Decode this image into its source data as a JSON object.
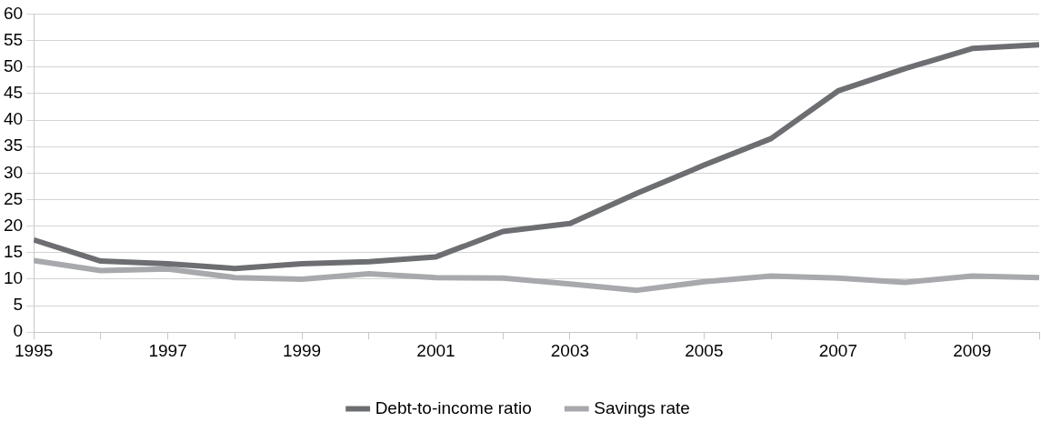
{
  "chart_data": {
    "type": "line",
    "x": [
      1995,
      1996,
      1997,
      1998,
      1999,
      2000,
      2001,
      2002,
      2003,
      2004,
      2005,
      2006,
      2007,
      2008,
      2009,
      2010
    ],
    "series": [
      {
        "name": "Debt-to-income ratio",
        "color": "#6d6e71",
        "values": [
          17.4,
          13.4,
          12.9,
          12.0,
          12.9,
          13.3,
          14.2,
          19.0,
          20.5,
          26.2,
          31.5,
          36.5,
          45.5,
          49.7,
          53.5,
          54.2
        ]
      },
      {
        "name": "Savings rate",
        "color": "#a7a9ac",
        "values": [
          13.5,
          11.6,
          11.9,
          10.3,
          10.0,
          11.0,
          10.3,
          10.2,
          9.1,
          7.9,
          9.5,
          10.6,
          10.2,
          9.4,
          10.6,
          10.3
        ]
      }
    ],
    "xlim": [
      1995,
      2010
    ],
    "xticks": [
      1995,
      {
        "value": 1996,
        "label": null
      },
      1997,
      {
        "value": 1998,
        "label": null
      },
      1999,
      {
        "value": 2000,
        "label": null
      },
      2001,
      {
        "value": 2002,
        "label": null
      },
      2003,
      {
        "value": 2004,
        "label": null
      },
      2005,
      {
        "value": 2006,
        "label": null
      },
      2007,
      {
        "value": 2008,
        "label": null
      },
      2009,
      {
        "value": 2010,
        "label": null
      }
    ],
    "ylim": [
      0,
      60
    ],
    "yticks": [
      0,
      5,
      10,
      15,
      20,
      25,
      30,
      35,
      40,
      45,
      50,
      55,
      60
    ],
    "grid": "y",
    "legend": "bottom"
  }
}
